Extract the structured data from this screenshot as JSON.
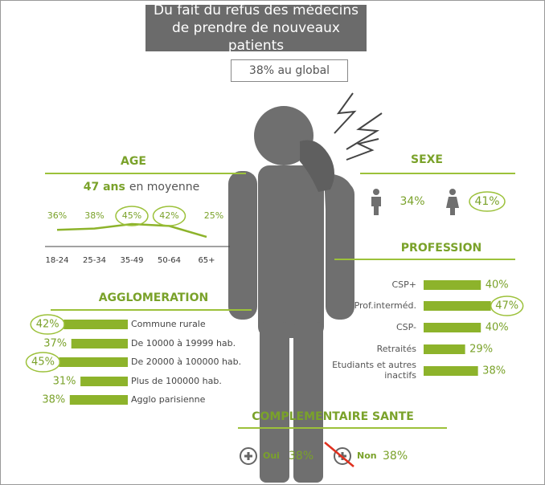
{
  "title": "Du fait du refus des médecins de prendre de nouveaux patients",
  "global": "38% au global",
  "age": {
    "heading": "AGE",
    "mean_value": "47 ans",
    "mean_text": "en moyenne",
    "categories": [
      "18-24",
      "25-34",
      "35-49",
      "50-64",
      "65+"
    ],
    "values": [
      36,
      38,
      45,
      42,
      25
    ],
    "value_labels": [
      "36%",
      "38%",
      "45%",
      "42%",
      "25%"
    ],
    "circled": [
      2,
      3
    ],
    "color": "#8db32b"
  },
  "sexe": {
    "heading": "SEXE",
    "values": [
      34,
      41
    ],
    "value_labels": [
      "34%",
      "41%"
    ],
    "circled": [
      1
    ]
  },
  "profession": {
    "heading": "PROFESSION",
    "categories": [
      "CSP+",
      "Prof.interméd.",
      "CSP-",
      "Retraités",
      "Etudiants et autres inactifs"
    ],
    "values": [
      40,
      47,
      40,
      29,
      38
    ],
    "value_labels": [
      "40%",
      "47%",
      "40%",
      "29%",
      "38%"
    ],
    "circled": [
      1
    ],
    "color": "#8db32b"
  },
  "agglomeration": {
    "heading": "AGGLOMERATION",
    "categories": [
      "Commune rurale",
      "De 10000 à 19999 hab.",
      "De 20000 à 100000 hab.",
      "Plus de 100000 hab.",
      "Agglo parisienne"
    ],
    "values": [
      42,
      37,
      45,
      31,
      38
    ],
    "value_labels": [
      "42%",
      "37%",
      "45%",
      "31%",
      "38%"
    ],
    "circled": [
      0,
      2
    ],
    "color": "#8db32b"
  },
  "complementaire": {
    "heading": "COMPLEMENTAIRE SANTE",
    "items": [
      {
        "label": "Oui",
        "value": 38,
        "value_label": "38%",
        "crossed": false
      },
      {
        "label": "Non",
        "value": 38,
        "value_label": "38%",
        "crossed": true
      }
    ]
  }
}
